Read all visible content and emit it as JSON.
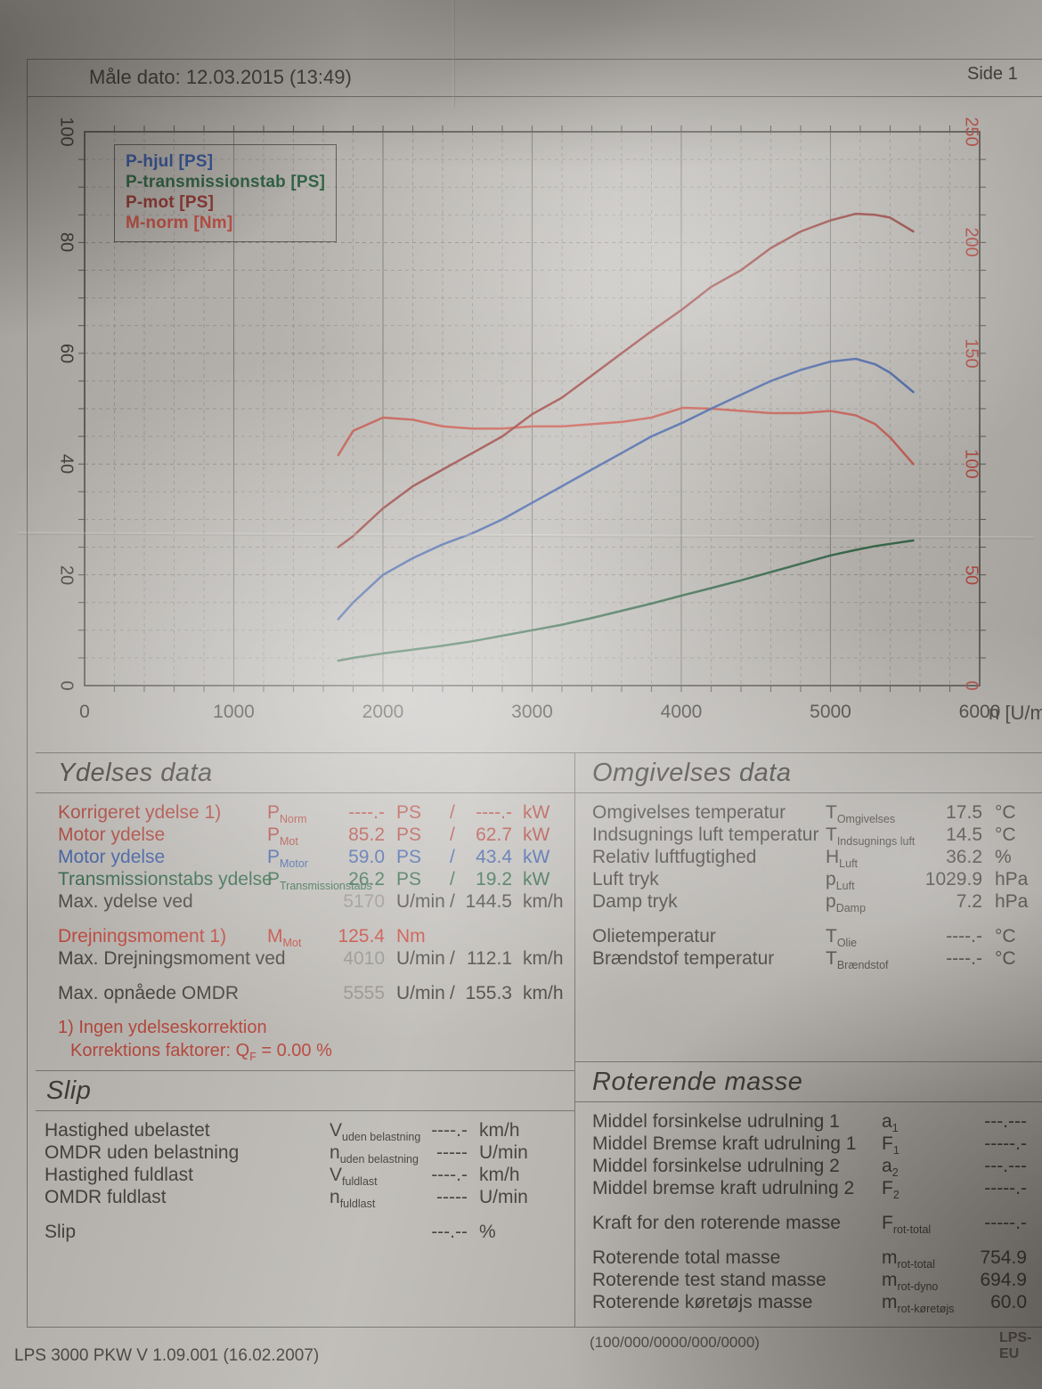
{
  "page": {
    "measure_date": "Måle dato: 12.03.2015 (13:49)",
    "page_number": "Side 1",
    "footer_left": "LPS 3000 PKW V 1.09.001 (16.02.2007)",
    "footer_code": "(100/000/0000/000/0000)",
    "footer_right": "LPS-EU"
  },
  "chart_data": {
    "type": "line",
    "x": {
      "label": "n [U/min]",
      "min": 0,
      "max": 6000,
      "ticks": [
        0,
        1000,
        2000,
        3000,
        4000,
        5000,
        6000
      ],
      "minor_step": 200
    },
    "y_left": {
      "unit": "PS",
      "min": 0,
      "max": 100,
      "ticks": [
        0,
        20,
        40,
        60,
        80,
        100
      ],
      "minor_step": 5,
      "color": "#37342f"
    },
    "y_right": {
      "unit": "Nm",
      "min": 0,
      "max": 250,
      "ticks": [
        0,
        50,
        100,
        150,
        200,
        250
      ],
      "color": "#b5443a"
    },
    "grid": "on",
    "legend_position": "top-left",
    "legend": [
      {
        "label": "P-hjul [PS]",
        "color": "#2a4f9f"
      },
      {
        "label": "P-transmissionstab [PS]",
        "color": "#1f5c38"
      },
      {
        "label": "P-mot [PS]",
        "color": "#8e2b26"
      },
      {
        "label": "M-norm [Nm]",
        "color": "#c4473a"
      }
    ],
    "series": [
      {
        "name": "M-norm [Nm]",
        "axis": "right",
        "color": "#c4473a",
        "x": [
          1700,
          1800,
          2000,
          2200,
          2400,
          2600,
          2800,
          3000,
          3200,
          3400,
          3600,
          3800,
          4010,
          4200,
          4400,
          4600,
          4800,
          5000,
          5170,
          5300,
          5400,
          5555
        ],
        "values": [
          104,
          115,
          121,
          120,
          117,
          116,
          116,
          117,
          117,
          118,
          119,
          121,
          125.4,
          125,
          124,
          123,
          123,
          124,
          122,
          118,
          112,
          100
        ]
      },
      {
        "name": "P-mot [PS]",
        "axis": "left",
        "color": "#8e2b26",
        "x": [
          1700,
          1800,
          2000,
          2200,
          2400,
          2600,
          2800,
          3000,
          3200,
          3400,
          3600,
          3800,
          4010,
          4200,
          4400,
          4600,
          4800,
          5000,
          5170,
          5300,
          5400,
          5555
        ],
        "values": [
          25,
          27,
          32,
          36,
          39,
          42,
          45,
          49,
          52,
          56,
          60,
          64,
          68,
          72,
          75,
          79,
          82,
          84,
          85.2,
          85,
          84.5,
          82
        ]
      },
      {
        "name": "P-hjul [PS]",
        "axis": "left",
        "color": "#2a4f9f",
        "x": [
          1700,
          1800,
          2000,
          2200,
          2400,
          2600,
          2800,
          3000,
          3200,
          3400,
          3600,
          3800,
          4010,
          4200,
          4400,
          4600,
          4800,
          5000,
          5170,
          5300,
          5400,
          5555
        ],
        "values": [
          12,
          15,
          20,
          23,
          25.5,
          27.5,
          30,
          33,
          36,
          39,
          42,
          45,
          47.5,
          50,
          52.5,
          55,
          57,
          58.5,
          59,
          58,
          56.5,
          53
        ]
      },
      {
        "name": "P-transmissionstab [PS]",
        "axis": "left",
        "color": "#1f5c38",
        "x": [
          1700,
          1800,
          2000,
          2200,
          2400,
          2600,
          2800,
          3000,
          3200,
          3400,
          3600,
          3800,
          4010,
          4200,
          4400,
          4600,
          4800,
          5000,
          5170,
          5300,
          5400,
          5555
        ],
        "values": [
          4.5,
          5,
          5.8,
          6.5,
          7.2,
          8,
          9,
          10,
          11,
          12.2,
          13.5,
          14.8,
          16.3,
          17.6,
          19,
          20.5,
          22,
          23.5,
          24.5,
          25.2,
          25.6,
          26.2
        ]
      }
    ]
  },
  "sections": {
    "ydelses": {
      "title": "Ydelses data",
      "rows": [
        {
          "label": "Korrigeret ydelse 1)",
          "sym": "P",
          "sub": "Norm",
          "v1": "----.-",
          "u1": "PS",
          "slash": "/",
          "v2": "----.-",
          "u2": "kW",
          "color": "#a83228"
        },
        {
          "label": "Motor ydelse",
          "sym": "P",
          "sub": "Mot",
          "v1": "85.2",
          "u1": "PS",
          "slash": "/",
          "v2": "62.7",
          "u2": "kW",
          "color": "#a83228"
        },
        {
          "label": "Motor ydelse",
          "sym": "P",
          "sub": "Motor",
          "v1": "59.0",
          "u1": "PS",
          "slash": "/",
          "v2": "43.4",
          "u2": "kW",
          "color": "#2a4f9f"
        },
        {
          "label": "Transmissionstabs ydelse",
          "sym": "P",
          "sub": "Transmissionstabs",
          "v1": "26.2",
          "u1": "PS",
          "slash": "/",
          "v2": "19.2",
          "u2": "kW",
          "color": "#1f5c38"
        },
        {
          "label": "Max. ydelse ved",
          "sym": "",
          "sub": "",
          "v1": "5170",
          "u1": "U/min",
          "slash": "/",
          "v2": "144.5",
          "u2": "km/h",
          "color": "#3a3733",
          "v1color": "#8b8884"
        },
        {
          "label": "Drejningsmoment 1)",
          "sym": "M",
          "sub": "Mot",
          "v1": "125.4",
          "u1": "Nm",
          "slash": "",
          "v2": "",
          "u2": "",
          "color": "#c23b2e",
          "gap": true
        },
        {
          "label": "Max. Drejningsmoment ved",
          "sym": "",
          "sub": "",
          "v1": "4010",
          "u1": "U/min",
          "slash": "/",
          "v2": "112.1",
          "u2": "km/h",
          "color": "#3a3733",
          "v1color": "#8b8884"
        },
        {
          "label": "Max. opnåede OMDR",
          "sym": "",
          "sub": "",
          "v1": "5555",
          "u1": "U/min",
          "slash": "/",
          "v2": "155.3",
          "u2": "km/h",
          "color": "#3a3733",
          "v1color": "#8b8884",
          "gap": true
        }
      ],
      "footnotes": {
        "line1": "1) Ingen ydelseskorrektion",
        "line2_pre": "Korrektions faktorer: Q",
        "line2_sub": "F",
        "line2_post": " =  0.00 %"
      }
    },
    "omgivelses": {
      "title": "Omgivelses data",
      "rows": [
        {
          "label": "Omgivelses temperatur",
          "sym": "T",
          "sub": "Omgivelses",
          "value": "17.5",
          "unit": "°C"
        },
        {
          "label": "Indsugnings luft temperatur",
          "sym": "T",
          "sub": "Indsugnings luft",
          "value": "14.5",
          "unit": "°C"
        },
        {
          "label": "Relativ luftfugtighed",
          "sym": "H",
          "sub": "Luft",
          "value": "36.2",
          "unit": "%"
        },
        {
          "label": "Luft tryk",
          "sym": "p",
          "sub": "Luft",
          "value": "1029.9",
          "unit": "hPa"
        },
        {
          "label": "Damp tryk",
          "sym": "p",
          "sub": "Damp",
          "value": "7.2",
          "unit": "hPa"
        },
        {
          "label": "Olietemperatur",
          "sym": "T",
          "sub": "Olie",
          "value": "----.-",
          "unit": "°C",
          "gap": true
        },
        {
          "label": "Brændstof temperatur",
          "sym": "T",
          "sub": "Brændstof",
          "value": "----.-",
          "unit": "°C"
        }
      ]
    },
    "slip": {
      "title": "Slip",
      "rows": [
        {
          "label": "Hastighed ubelastet",
          "sym": "V",
          "sub": "uden belastning",
          "value": "----.-",
          "unit": "km/h"
        },
        {
          "label": "OMDR uden belastning",
          "sym": "n",
          "sub": "uden belastning",
          "value": "-----",
          "unit": "U/min"
        },
        {
          "label": "Hastighed fuldlast",
          "sym": "V",
          "sub": "fuldlast",
          "value": "----.-",
          "unit": "km/h"
        },
        {
          "label": "OMDR fuldlast",
          "sym": "n",
          "sub": "fuldlast",
          "value": "-----",
          "unit": "U/min"
        },
        {
          "label": "Slip",
          "sym": "",
          "sub": "",
          "value": "---.--",
          "unit": "%",
          "gap": true
        }
      ]
    },
    "roterende": {
      "title": "Roterende masse",
      "rows": [
        {
          "label": "Middel forsinkelse udrulning 1",
          "sym": "a",
          "sub": "1",
          "value": "---.---"
        },
        {
          "label": "Middel Bremse kraft udrulning 1",
          "sym": "F",
          "sub": "1",
          "value": "-----.-"
        },
        {
          "label": "Middel forsinkelse udrulning 2",
          "sym": "a",
          "sub": "2",
          "value": "---.---"
        },
        {
          "label": "Middel bremse kraft udrulning 2",
          "sym": "F",
          "sub": "2",
          "value": "-----.-"
        },
        {
          "label": "Kraft for den roterende masse",
          "sym": "F",
          "sub": "rot-total",
          "value": "-----.-",
          "gap": true
        },
        {
          "label": "Roterende total masse",
          "sym": "m",
          "sub": "rot-total",
          "value": "754.9",
          "gap": true
        },
        {
          "label": "Roterende test stand masse",
          "sym": "m",
          "sub": "rot-dyno",
          "value": "694.9"
        },
        {
          "label": "Roterende køretøjs masse",
          "sym": "m",
          "sub": "rot-køretøjs",
          "value": "60.0"
        }
      ]
    }
  }
}
